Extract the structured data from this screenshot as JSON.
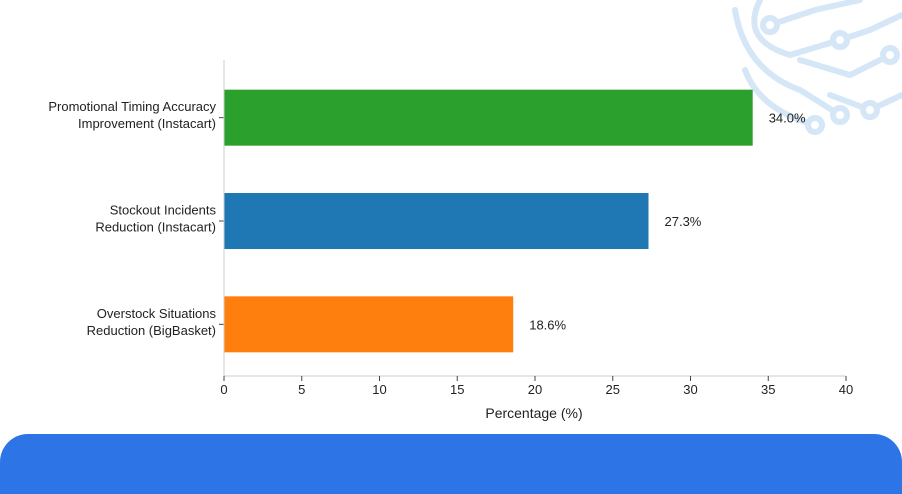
{
  "chart_data": {
    "type": "bar",
    "orientation": "horizontal",
    "categories": [
      [
        "Promotional Timing Accuracy",
        "Improvement (Instacart)"
      ],
      [
        "Stockout Incidents",
        "Reduction (Instacart)"
      ],
      [
        "Overstock Situations",
        "Reduction (BigBasket)"
      ]
    ],
    "values": [
      34.0,
      27.3,
      18.6
    ],
    "value_labels": [
      "34.0%",
      "27.3%",
      "18.6%"
    ],
    "colors": [
      "#2ca02c",
      "#1f77b4",
      "#ff7f0e"
    ],
    "xlabel": "Percentage (%)",
    "ylabel": "",
    "xlim": [
      0,
      40
    ],
    "xticks": [
      0,
      5,
      10,
      15,
      20,
      25,
      30,
      35,
      40
    ],
    "grid": false
  },
  "theme": {
    "banner_color": "#2d74e6",
    "decoration_color": "#d5e6f7",
    "axis_color": "#cccccc"
  }
}
